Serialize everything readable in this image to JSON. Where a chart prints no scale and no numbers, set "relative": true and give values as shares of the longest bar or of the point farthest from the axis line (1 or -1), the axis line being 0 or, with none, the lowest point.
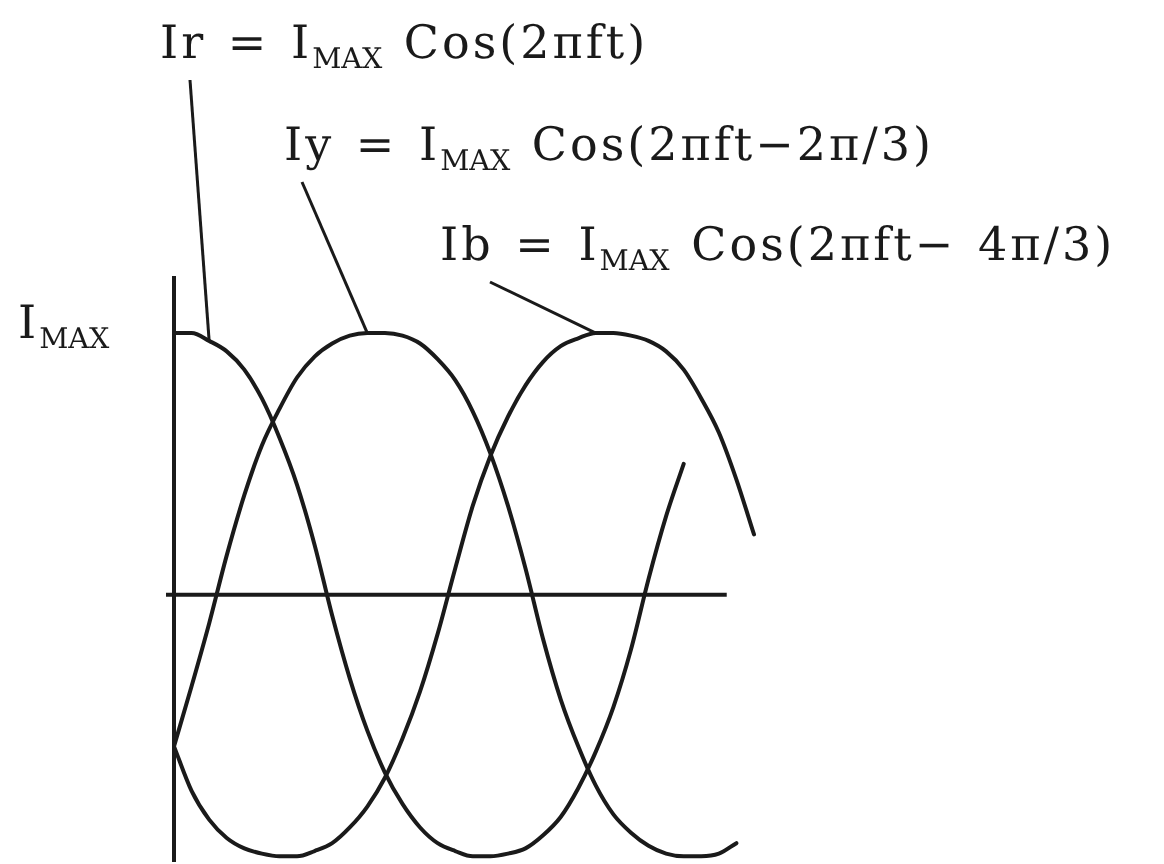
{
  "chart_data": {
    "type": "line",
    "relative": true,
    "ylabel": "I$_{MAX}$",
    "categories": [
      null,
      null,
      null,
      null,
      null,
      null,
      null,
      null,
      null,
      null,
      null,
      null,
      null,
      null,
      null,
      null,
      null,
      null,
      null,
      null,
      null,
      null,
      null,
      null,
      null,
      null,
      null,
      null,
      null,
      null,
      null,
      null,
      null,
      null
    ],
    "series": [
      {
        "name": "Ir = I$_{MAX}$ Cos(2πft)",
        "color": "#1a1a1a",
        "values": [
          1.0,
          1.0,
          0.97,
          0.93,
          0.86,
          0.75,
          0.6,
          0.42,
          0.19,
          -0.08,
          -0.32,
          -0.52,
          -0.68,
          -0.8,
          -0.89,
          -0.95,
          -0.98,
          -1.0,
          -1.0,
          -0.99,
          -0.97,
          -0.92,
          -0.85,
          -0.74,
          -0.6,
          -0.43,
          -0.21,
          0.06,
          0.3,
          0.5,
          null,
          null,
          null,
          null
        ]
      },
      {
        "name": "Iy = I$_{MAX}$ Cos(2πft−2π/3)",
        "color": "#1a1a1a",
        "values": [
          -0.58,
          -0.35,
          -0.11,
          0.15,
          0.38,
          0.57,
          0.71,
          0.83,
          0.91,
          0.96,
          0.99,
          1.0,
          1.0,
          0.99,
          0.96,
          0.9,
          0.82,
          0.7,
          0.54,
          0.34,
          0.1,
          -0.17,
          -0.4,
          -0.58,
          -0.73,
          -0.84,
          -0.91,
          -0.96,
          -0.99,
          -1.0,
          -1.0,
          -0.99,
          -0.95,
          null
        ]
      },
      {
        "name": "Ib = I$_{MAX}$ Cos(2πft− 4π/3)",
        "color": "#1a1a1a",
        "values": [
          -0.58,
          -0.75,
          -0.86,
          -0.93,
          -0.97,
          -0.99,
          -1.0,
          -1.0,
          -0.98,
          -0.95,
          -0.89,
          -0.81,
          -0.7,
          -0.55,
          -0.37,
          -0.15,
          0.1,
          0.34,
          0.53,
          0.68,
          0.8,
          0.89,
          0.95,
          0.98,
          1.0,
          1.0,
          0.99,
          0.97,
          0.93,
          0.86,
          0.75,
          0.62,
          0.44,
          0.23
        ]
      }
    ]
  }
}
